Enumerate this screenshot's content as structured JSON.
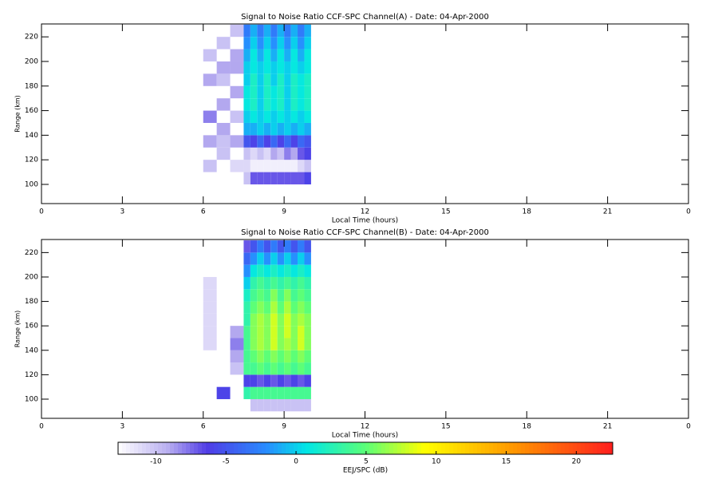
{
  "chart_data": [
    {
      "type": "heatmap",
      "title": "Signal to Noise Ratio CCF-SPC Channel(A) - Date: 04-Apr-2000",
      "xlabel": "Local Time (hours)",
      "ylabel": "Range (km)",
      "xlim": [
        0,
        24
      ],
      "xticks": [
        0,
        3,
        6,
        9,
        12,
        15,
        18,
        21,
        {
          "value": 24,
          "label": "0"
        }
      ],
      "ylim": [
        84.4,
        230.5
      ],
      "yticks": [
        100,
        120,
        140,
        160,
        180,
        200,
        220
      ],
      "x_edges": [
        6,
        6.5,
        7,
        7.5,
        7.75,
        8,
        8.25,
        8.5,
        8.75,
        9,
        9.25,
        9.5,
        9.75,
        10
      ],
      "y_edges": [
        90,
        100,
        110,
        120,
        130,
        140,
        150,
        160,
        170,
        180,
        190,
        200,
        210,
        220,
        230
      ],
      "values": [
        [
          null,
          null,
          null,
          null,
          null,
          null,
          null,
          null,
          null,
          null,
          null,
          null,
          null
        ],
        [
          null,
          null,
          null,
          -10,
          -7,
          -7,
          -7,
          -7,
          -7,
          -7,
          -7,
          -7,
          -6
        ],
        [
          -10,
          null,
          -11,
          -11,
          -12,
          -12,
          -12,
          -12,
          -12,
          -12,
          -12,
          -11,
          -10
        ],
        [
          null,
          -10,
          null,
          -10,
          -11,
          -10,
          -11,
          -9,
          -10,
          -8,
          -9,
          -7,
          -6
        ],
        [
          -9,
          -10,
          -9,
          -5,
          -6,
          -4,
          -6,
          -4,
          -6,
          -4,
          -6,
          -4,
          -5
        ],
        [
          null,
          -9,
          null,
          -1,
          -1,
          0,
          -1,
          0,
          -1,
          0,
          -1,
          0,
          -1
        ],
        [
          -8,
          null,
          -10,
          0,
          1,
          0,
          1,
          0,
          1,
          0,
          1,
          0,
          1
        ],
        [
          null,
          -9,
          null,
          1,
          2,
          0,
          2,
          1,
          2,
          0,
          2,
          1,
          2
        ],
        [
          null,
          null,
          -9,
          1,
          2,
          0,
          2,
          1,
          2,
          0,
          2,
          1,
          2
        ],
        [
          -9,
          -10,
          null,
          0,
          2,
          0,
          2,
          0,
          2,
          0,
          2,
          1,
          2
        ],
        [
          null,
          -9,
          -9,
          0,
          1,
          0,
          1,
          0,
          1,
          0,
          1,
          0,
          1
        ],
        [
          -10,
          null,
          -9,
          -1,
          1,
          -1,
          1,
          -1,
          1,
          -1,
          1,
          -1,
          1
        ],
        [
          null,
          -10,
          null,
          -2,
          0,
          -2,
          0,
          -2,
          0,
          -2,
          0,
          -2,
          0
        ],
        [
          null,
          null,
          -10,
          -3,
          -1,
          -3,
          -1,
          -3,
          -1,
          -3,
          -1,
          -3,
          -1
        ]
      ]
    },
    {
      "type": "heatmap",
      "title": "Signal to Noise Ratio CCF-SPC Channel(B) - Date: 04-Apr-2000",
      "xlabel": "Local Time (hours)",
      "ylabel": "Range (km)",
      "xlim": [
        0,
        24
      ],
      "xticks": [
        0,
        3,
        6,
        9,
        12,
        15,
        18,
        21,
        {
          "value": 24,
          "label": "0"
        }
      ],
      "ylim": [
        84.3,
        230.7
      ],
      "yticks": [
        100,
        120,
        140,
        160,
        180,
        200,
        220
      ],
      "x_edges": [
        6,
        6.5,
        7,
        7.5,
        7.75,
        8,
        8.25,
        8.5,
        8.75,
        9,
        9.25,
        9.5,
        9.75,
        10
      ],
      "y_edges": [
        90,
        100,
        110,
        120,
        130,
        140,
        150,
        160,
        170,
        180,
        190,
        200,
        210,
        220,
        230
      ],
      "values": [
        [
          null,
          null,
          null,
          null,
          -10,
          -10,
          -10,
          -10,
          -10,
          -10,
          -10,
          -10,
          -10
        ],
        [
          null,
          -6,
          null,
          3,
          4,
          4,
          4,
          4,
          4,
          4,
          4,
          4,
          4
        ],
        [
          null,
          null,
          null,
          -6,
          -6,
          -7,
          -6,
          -7,
          -6,
          -7,
          -6,
          -7,
          -6
        ],
        [
          null,
          null,
          -10,
          4,
          4,
          5,
          4,
          5,
          4,
          5,
          4,
          5,
          4
        ],
        [
          null,
          null,
          -9,
          4,
          5,
          6,
          5,
          6,
          5,
          6,
          5,
          6,
          5
        ],
        [
          -11,
          null,
          -8,
          4,
          6,
          7,
          6,
          8,
          6,
          7,
          6,
          8,
          6
        ],
        [
          -11,
          null,
          -9,
          4,
          6,
          7,
          6,
          8,
          6,
          8,
          6,
          8,
          6
        ],
        [
          -11,
          null,
          null,
          3,
          6,
          7,
          6,
          8,
          6,
          8,
          6,
          7,
          6
        ],
        [
          -11,
          null,
          null,
          3,
          5,
          6,
          5,
          7,
          5,
          7,
          5,
          6,
          5
        ],
        [
          -11,
          null,
          null,
          2,
          4,
          5,
          4,
          6,
          4,
          6,
          4,
          5,
          4
        ],
        [
          -11,
          null,
          null,
          0,
          3,
          4,
          3,
          4,
          3,
          4,
          3,
          4,
          3
        ],
        [
          null,
          null,
          null,
          -2,
          1,
          2,
          1,
          2,
          1,
          2,
          1,
          2,
          1
        ],
        [
          null,
          null,
          null,
          -4,
          -2,
          0,
          -2,
          0,
          -2,
          0,
          -2,
          0,
          -2
        ],
        [
          null,
          null,
          null,
          -7,
          -5,
          -3,
          -5,
          -3,
          -5,
          -3,
          -5,
          -3,
          -5
        ]
      ]
    }
  ],
  "colorbar": {
    "label": "EEJ/SPC (dB)",
    "lim": [
      -12.7,
      22.6
    ],
    "ticks": [
      -10,
      -5,
      0,
      5,
      10,
      15,
      20
    ]
  }
}
